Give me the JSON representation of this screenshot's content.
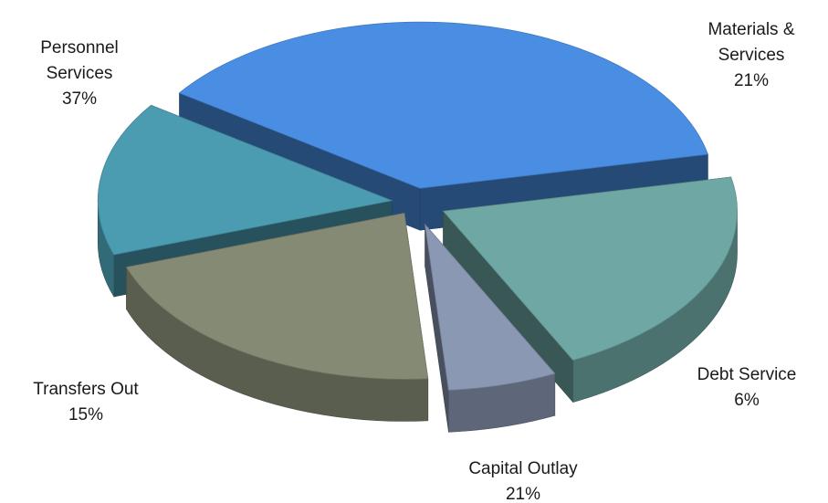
{
  "chart_data": {
    "type": "pie",
    "title": "",
    "slices": [
      {
        "label": "Personnel Services",
        "value": 37,
        "display": "37%",
        "color": "#4a8ee3"
      },
      {
        "label": "Materials & Services",
        "value": 21,
        "display": "21%",
        "color": "#6ea7a3"
      },
      {
        "label": "Debt Service",
        "value": 6,
        "display": "6%",
        "color": "#8a98b3"
      },
      {
        "label": "Capital Outlay",
        "value": 21,
        "display": "21%",
        "color": "#848a74"
      },
      {
        "label": "Transfers Out",
        "value": 15,
        "display": "15%",
        "color": "#4b9cb1"
      }
    ],
    "exploded": true,
    "three_d": true,
    "legend": "none",
    "data_labels": "category and percent, outside"
  }
}
